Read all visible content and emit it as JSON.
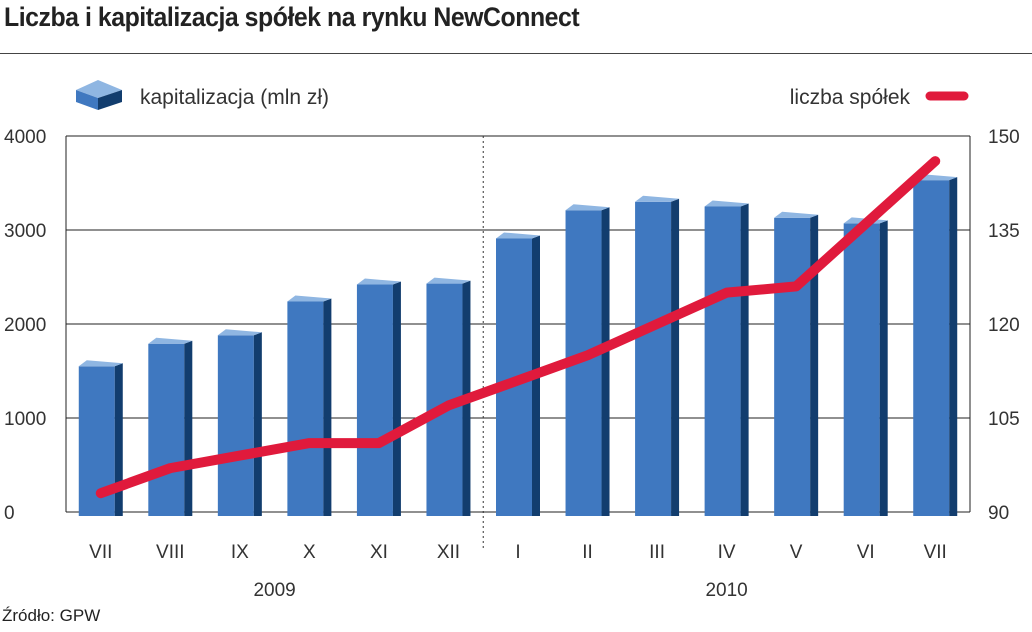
{
  "title": "Liczba i kapitalizacja spółek na rynku NewConnect",
  "source": "Źródło: GPW",
  "colors": {
    "bar_front": "#3f78c0",
    "bar_side": "#123d6e",
    "bar_top": "#8fb6e2",
    "line": "#e01a3c",
    "grid": "#222222"
  },
  "chart_data": {
    "type": "bar",
    "categories": [
      "VII",
      "VIII",
      "IX",
      "X",
      "XI",
      "XII",
      "I",
      "II",
      "III",
      "IV",
      "V",
      "VI",
      "VII"
    ],
    "year_labels": [
      "2009",
      "2010"
    ],
    "series": [
      {
        "name": "kapitalizacja (mln zł)",
        "type": "bar",
        "axis": "left",
        "values": [
          1550,
          1790,
          1880,
          2240,
          2420,
          2430,
          2910,
          3210,
          3300,
          3250,
          3130,
          3070,
          3530
        ]
      },
      {
        "name": "liczba spółek",
        "type": "line",
        "axis": "right",
        "values": [
          93,
          97,
          99,
          101,
          101,
          107,
          111,
          115,
          120,
          125,
          126,
          136,
          146
        ]
      }
    ],
    "y_left": {
      "ylim": [
        0,
        4000
      ],
      "ticks": [
        "0",
        "1000",
        "2000",
        "3000",
        "4000"
      ]
    },
    "y_right": {
      "ylim": [
        90,
        150
      ],
      "ticks": [
        "90",
        "105",
        "120",
        "135",
        "150"
      ]
    },
    "grid": true,
    "legend": [
      {
        "label": "kapitalizacja (mln zł)",
        "position": "top-left"
      },
      {
        "label": "liczba spółek",
        "position": "top-right"
      }
    ]
  }
}
